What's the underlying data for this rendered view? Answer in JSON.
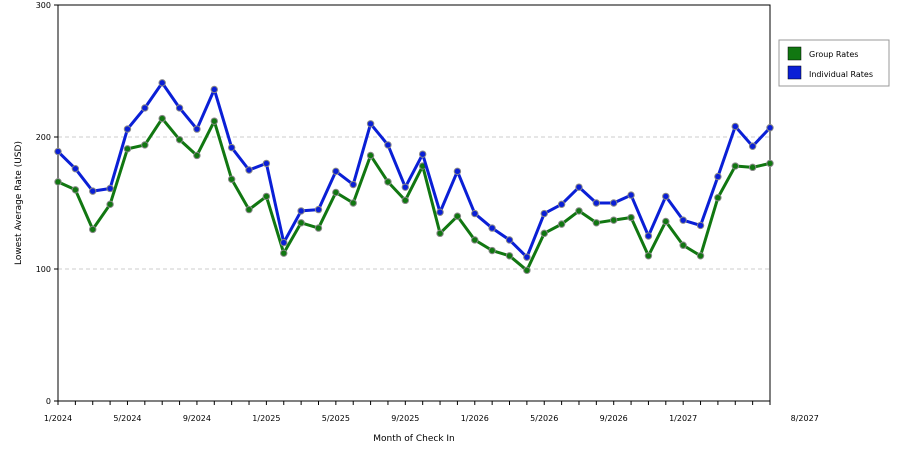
{
  "chart_data": {
    "type": "line",
    "xlabel": "Month of Check In",
    "ylabel": "Lowest Average Rate (USD)",
    "ylim": [
      0,
      300
    ],
    "y_ticks": [
      "0",
      "100",
      "200",
      "300"
    ],
    "x_tick_labels": [
      "1/2024",
      "5/2024",
      "9/2024",
      "1/2025",
      "5/2025",
      "9/2025",
      "1/2026",
      "5/2026",
      "9/2026",
      "1/2027",
      "8/2027"
    ],
    "x_tick_index": [
      0,
      4,
      8,
      12,
      16,
      20,
      24,
      28,
      32,
      36,
      43
    ],
    "grid": "horizontal dashed",
    "legend_position": "right",
    "series": [
      {
        "name": "Group Rates",
        "color": "#117711",
        "values": [
          166,
          160,
          130,
          149,
          191,
          194,
          214,
          198,
          186,
          212,
          168,
          145,
          155,
          112,
          135,
          131,
          158,
          150,
          186,
          166,
          152,
          178,
          127,
          140,
          122,
          114,
          110,
          99,
          127,
          134,
          144,
          135,
          137,
          139,
          110,
          136,
          118,
          110,
          154,
          178,
          177,
          180
        ]
      },
      {
        "name": "Individual Rates",
        "color": "#0a1fd6",
        "values": [
          189,
          176,
          159,
          161,
          206,
          222,
          241,
          222,
          206,
          236,
          192,
          175,
          180,
          120,
          144,
          145,
          174,
          164,
          210,
          194,
          162,
          187,
          143,
          174,
          142,
          131,
          122,
          109,
          142,
          149,
          162,
          150,
          150,
          156,
          125,
          155,
          137,
          133,
          170,
          208,
          193,
          207
        ]
      }
    ]
  }
}
